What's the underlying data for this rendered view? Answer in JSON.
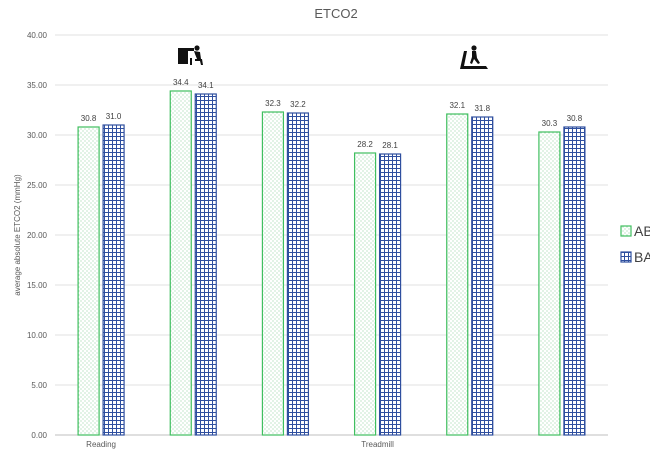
{
  "chart_data": {
    "type": "bar",
    "title": "ETCO2",
    "xlabel": "",
    "ylabel": "average absolute ETCO2 (mmHg)",
    "ylim": [
      0,
      40
    ],
    "yticks": [
      "0.00",
      "5.00",
      "10.00",
      "15.00",
      "20.00",
      "25.00",
      "30.00",
      "35.00",
      "40.00"
    ],
    "grid": true,
    "legend": "right",
    "groups": 6,
    "category_labels": [
      {
        "text": "Reading",
        "group": 0
      },
      {
        "text": "Treadmill",
        "group": 3
      }
    ],
    "series": [
      {
        "name": "AB",
        "values": [
          30.8,
          34.4,
          32.3,
          28.2,
          32.1,
          30.3
        ],
        "labels": [
          "30.8",
          "34.4",
          "32.3",
          "28.2",
          "32.1",
          "30.3"
        ],
        "color": "#3fbf5f",
        "pattern": "dots"
      },
      {
        "name": "BA",
        "values": [
          31.0,
          34.1,
          32.2,
          28.1,
          31.8,
          30.8
        ],
        "labels": [
          "31.0",
          "34.1",
          "32.2",
          "28.1",
          "31.8",
          "30.8"
        ],
        "color": "#2f4f9f",
        "pattern": "grid"
      }
    ],
    "icons": [
      {
        "name": "desk-reading-icon",
        "group": 1
      },
      {
        "name": "treadmill-icon",
        "group": 4
      }
    ]
  }
}
